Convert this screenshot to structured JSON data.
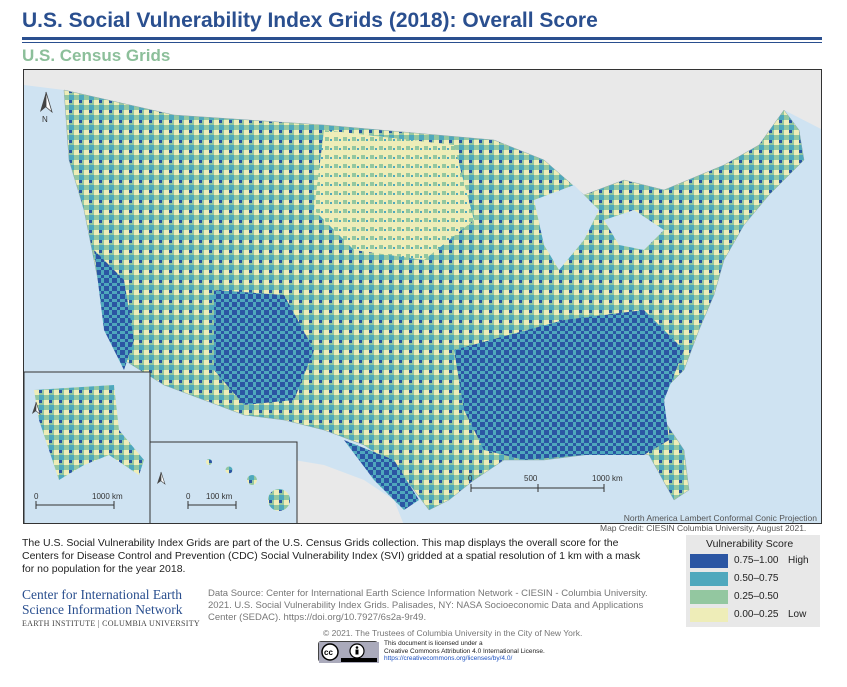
{
  "header": {
    "title": "U.S. Social Vulnerability Index Grids (2018): Overall Score",
    "subtitle": "U.S. Census Grids"
  },
  "map": {
    "projection": "North America Lambert Conformal Conic Projection",
    "credit": "Map Credit: CIESIN Columbia University, August 2021.",
    "main_scalebar": {
      "labels": [
        "0",
        "500",
        "1000 km"
      ]
    },
    "alaska_inset": {
      "scalebar": {
        "labels": [
          "0",
          "1000 km"
        ]
      }
    },
    "hawaii_inset": {
      "scalebar": {
        "labels": [
          "0",
          "100 km"
        ]
      }
    },
    "north_arrow_label": "N"
  },
  "description": "The U.S. Social Vulnerability Index Grids are part of the U.S. Census Grids collection. This map displays the overall score for the Centers for Disease Control and Prevention (CDC) Social Vulnerability Index (SVI) gridded at a spatial resolution of 1 km with a mask for no population for the year 2018.",
  "legend": {
    "title": "Vulnerability Score",
    "items": [
      {
        "label": "0.75–1.00",
        "level": "High",
        "color": "#2b56a3"
      },
      {
        "label": "0.50–0.75",
        "level": "",
        "color": "#4fa8bd"
      },
      {
        "label": "0.25–0.50",
        "level": "",
        "color": "#93c7a0"
      },
      {
        "label": "0.00–0.25",
        "level": "Low",
        "color": "#eeedb8"
      }
    ]
  },
  "organization": {
    "line1": "Center for International Earth",
    "line2": "Science Information Network",
    "sub": "EARTH INSTITUTE | COLUMBIA UNIVERSITY"
  },
  "source": "Data Source: Center for International Earth Science Information Network - CIESIN - Columbia University. 2021. U.S. Social Vulnerability Index Grids. Palisades, NY: NASA Socioeconomic Data and Applications Center (SEDAC). https://doi.org/10.7927/6s2a-9r49.",
  "copyright": "© 2021. The Trustees of Columbia University in the City of New York.",
  "license": {
    "badge": "cc-by-icon",
    "line1": "This document is licensed under a",
    "line2": "Creative Commons Attribution 4.0 International License.",
    "link": "https://creativecommons.org/licenses/by/4.0/"
  },
  "colors": {
    "water": "#cfe3f2",
    "land_outside": "#e9e9e9",
    "title": "#2a4f8f",
    "subtitle": "#8cbf9a"
  }
}
